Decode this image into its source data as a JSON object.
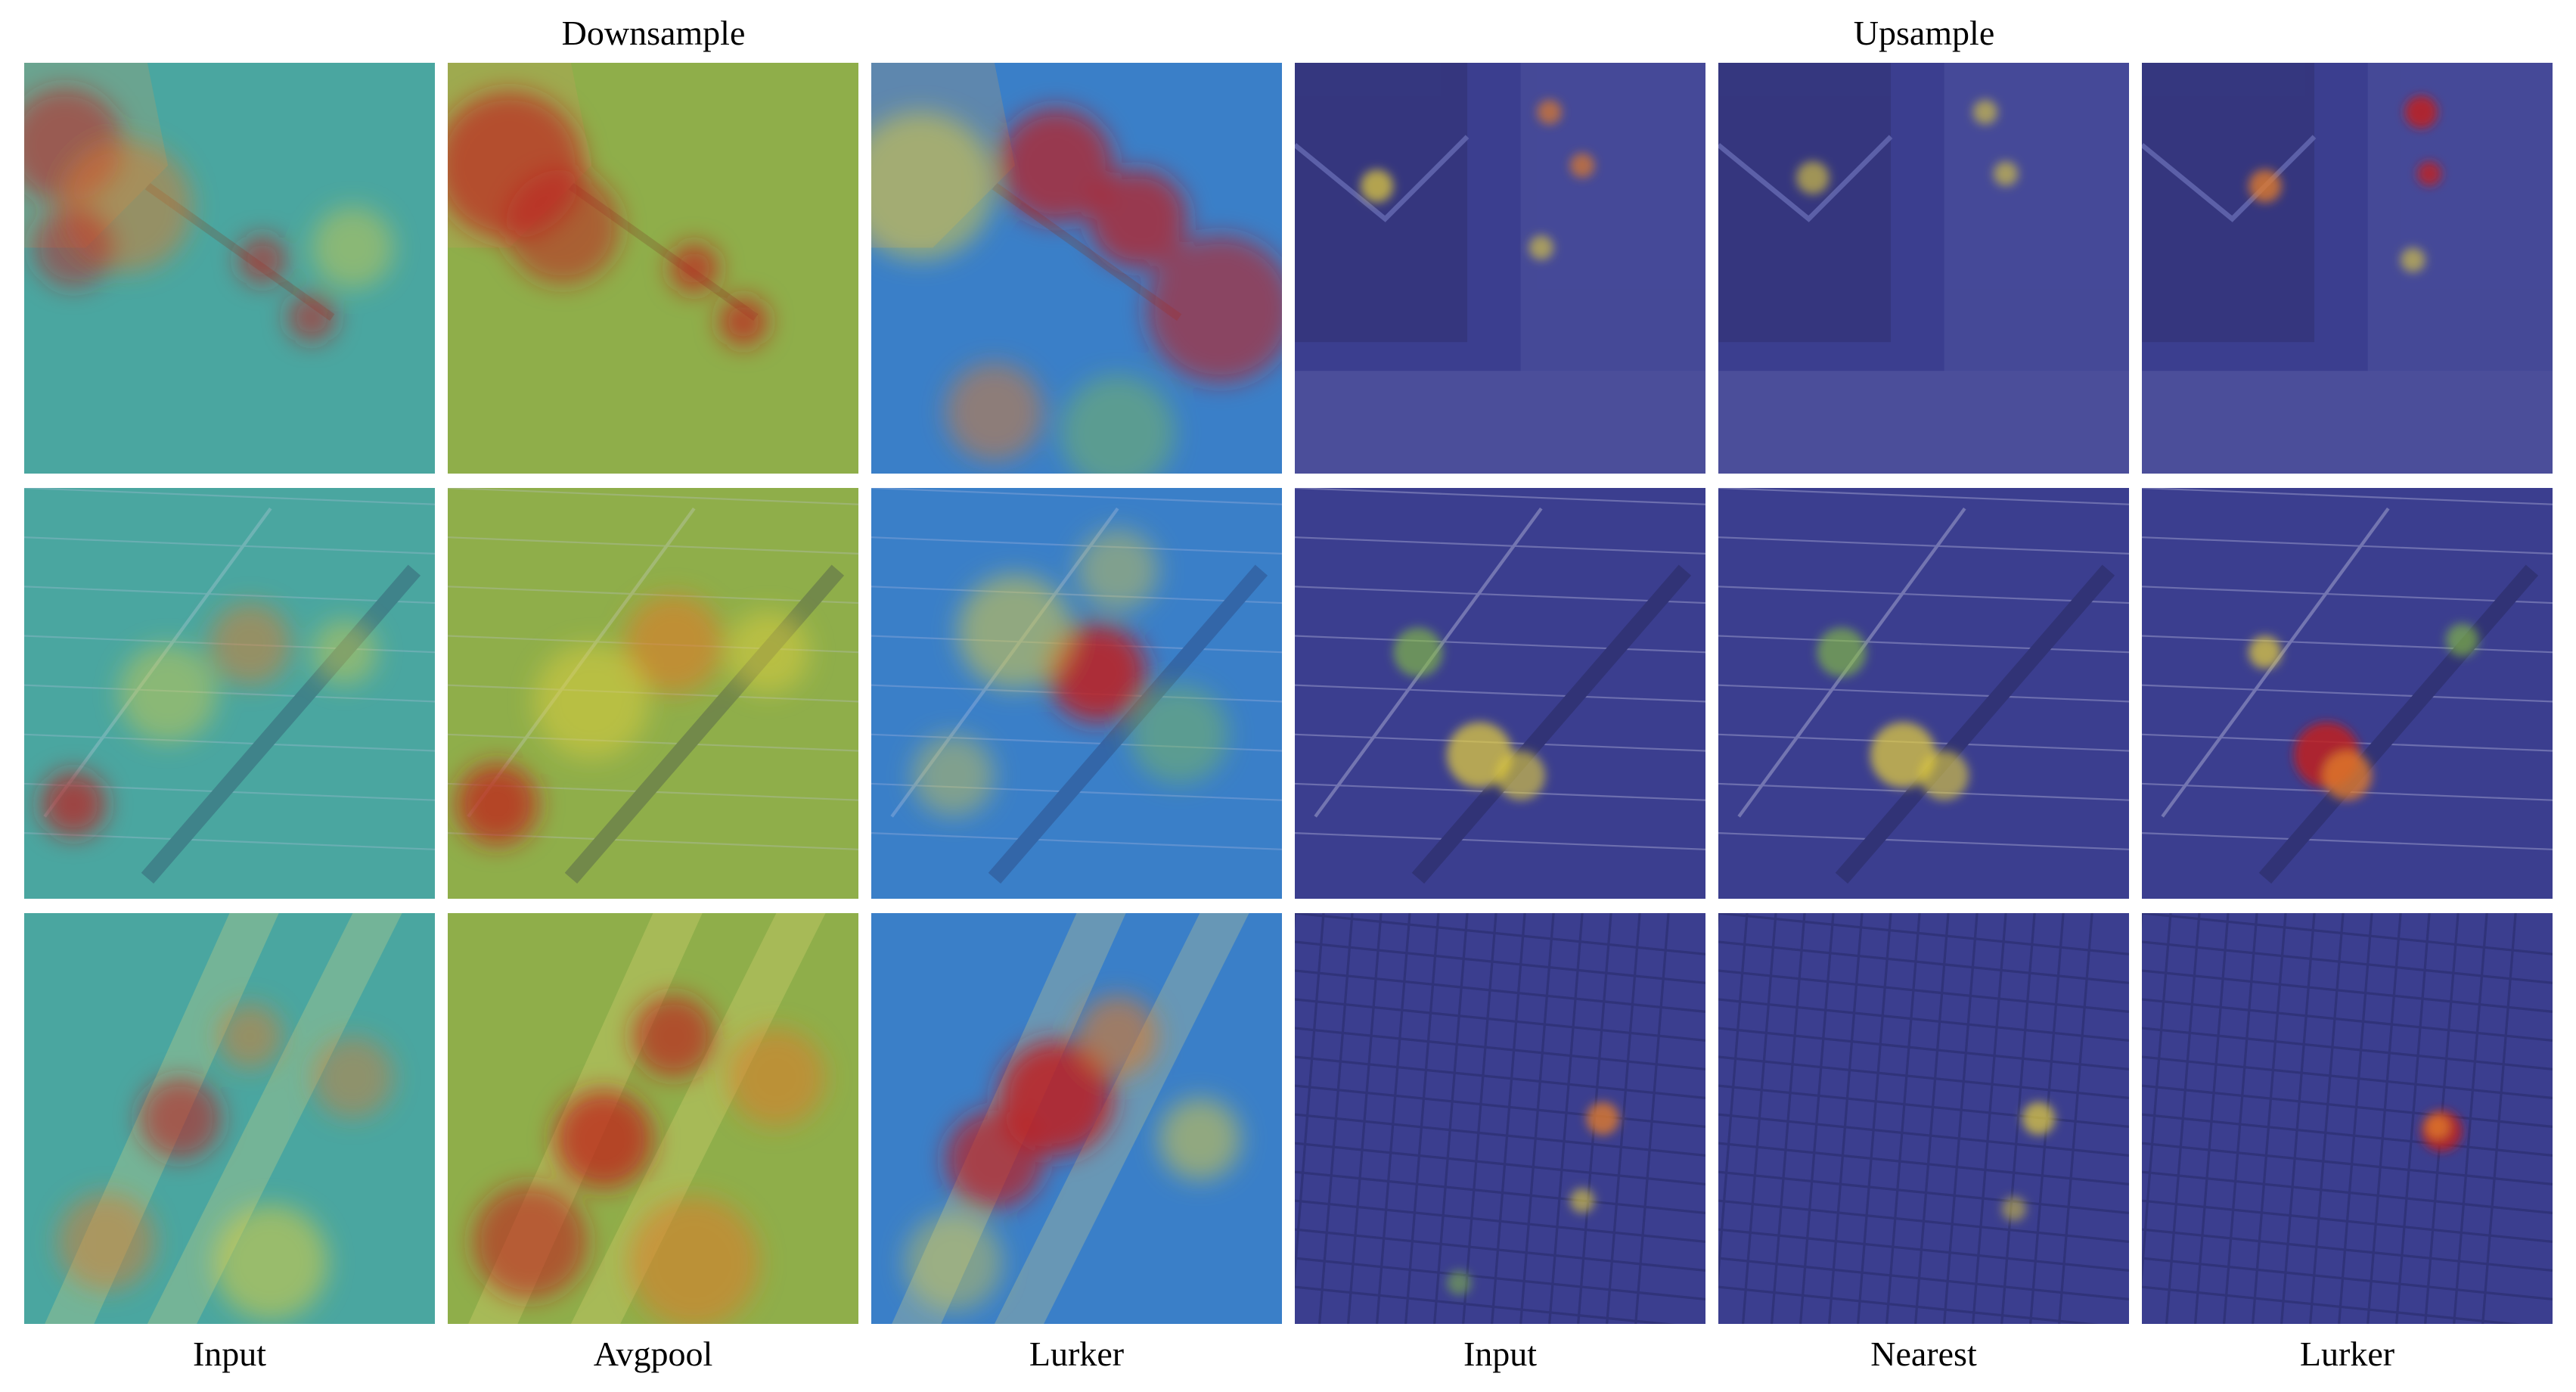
{
  "figure": {
    "group_titles": {
      "downsample": "Downsample",
      "upsample": "Upsample"
    },
    "column_labels": [
      "Input",
      "Avgpool",
      "Lurker",
      "Input",
      "Nearest",
      "Lurker"
    ],
    "rows": 3,
    "columns": 6,
    "heatmap_colormap": [
      "#2b2f9a",
      "#2f7fd0",
      "#35b9b0",
      "#8cc83c",
      "#e8d23a",
      "#e07a2a",
      "#c0201e"
    ]
  }
}
